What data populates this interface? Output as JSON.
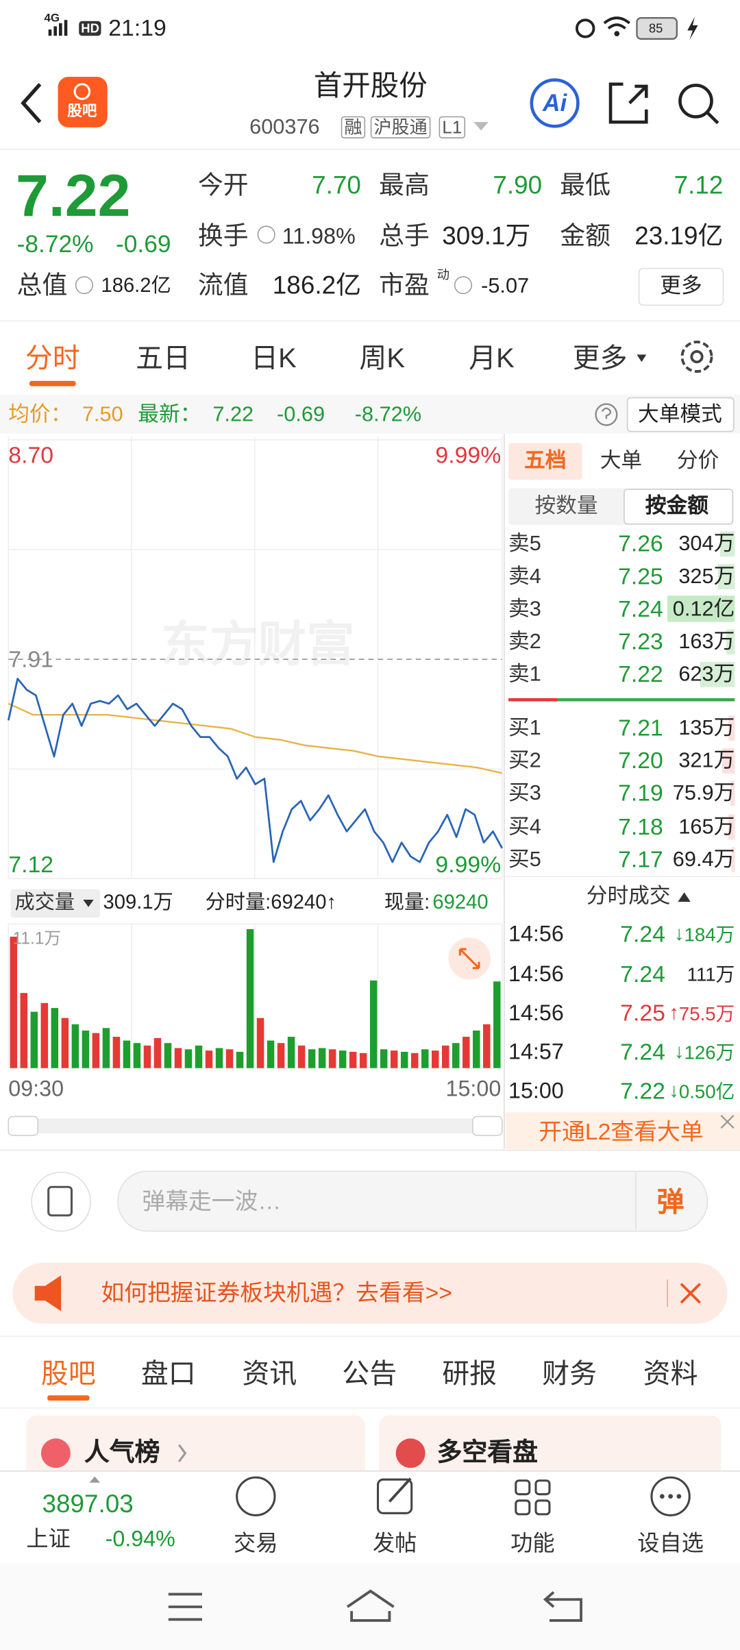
{
  "status_bar": {
    "network": "4G",
    "hd": "HD",
    "time": "21:19",
    "battery": "85"
  },
  "header": {
    "logo": "股吧",
    "title": "首开股份",
    "code": "600376",
    "tags": [
      "融",
      "沪股通",
      "L1"
    ],
    "ai": "Ai"
  },
  "quote": {
    "price": "7.22",
    "change_pct": "-8.72%",
    "change": "-0.69",
    "open_label": "今开",
    "open": "7.70",
    "high_label": "最高",
    "high": "7.90",
    "low_label": "最低",
    "low": "7.12",
    "turnover_label": "换手",
    "turnover": "11.98%",
    "volume_label": "总手",
    "volume": "309.1万",
    "amount_label": "金额",
    "amount": "23.19亿",
    "mcap_label": "总值",
    "mcap": "186.2亿",
    "float_label": "流值",
    "float": "186.2亿",
    "pe_label": "市盈",
    "pe_sup": "动",
    "pe": "-5.07",
    "more": "更多"
  },
  "chart_tabs": [
    "分时",
    "五日",
    "日K",
    "周K",
    "月K",
    "更多"
  ],
  "summary": {
    "avg_label": "均价：",
    "avg": "7.50",
    "latest_label": "最新：",
    "latest": "7.22",
    "change": "-0.69",
    "change_pct": "-8.72%",
    "mode": "大单模式"
  },
  "intraday_chart": {
    "type": "line",
    "ylim": [
      7.12,
      8.7
    ],
    "ref_price": 7.91,
    "price_color": "#2a65b5",
    "avg_color": "#e8b54a",
    "price": [
      7.69,
      7.84,
      7.8,
      7.78,
      7.67,
      7.56,
      7.71,
      7.75,
      7.67,
      7.75,
      7.76,
      7.75,
      7.78,
      7.73,
      7.75,
      7.71,
      7.67,
      7.71,
      7.75,
      7.73,
      7.67,
      7.63,
      7.63,
      7.59,
      7.56,
      7.48,
      7.52,
      7.46,
      7.48,
      7.18,
      7.29,
      7.37,
      7.4,
      7.33,
      7.37,
      7.42,
      7.35,
      7.29,
      7.33,
      7.37,
      7.29,
      7.25,
      7.18,
      7.25,
      7.2,
      7.18,
      7.25,
      7.29,
      7.35,
      7.27,
      7.37,
      7.35,
      7.25,
      7.29,
      7.23
    ],
    "avg": [
      7.75,
      7.71,
      7.71,
      7.71,
      7.71,
      7.7,
      7.69,
      7.68,
      7.67,
      7.66,
      7.63,
      7.62,
      7.6,
      7.59,
      7.58,
      7.56,
      7.55,
      7.54,
      7.53,
      7.52,
      7.5
    ],
    "top_label": "8.70",
    "top_pct": "9.99%",
    "ref_label": "7.91",
    "bottom_label": "7.12",
    "bottom_pct": "9.99%",
    "watermark": "东方财富",
    "volume_label": "成交量",
    "total_volume": "309.1万",
    "minute_volume": "分时量:69240↑",
    "now_label": "现量:",
    "now_volume": "69240",
    "volume_max_label": "11.1万",
    "volume_ylim": [
      0,
      111000
    ],
    "up_color": "#e53935",
    "down_color": "#1e9e2e",
    "volumes": [
      105000,
      60000,
      45000,
      52000,
      48000,
      40000,
      35000,
      30000,
      28000,
      32000,
      25000,
      22000,
      20000,
      18000,
      24000,
      20000,
      16000,
      15000,
      18000,
      14000,
      16000,
      15000,
      13000,
      111000,
      40000,
      22000,
      20000,
      25000,
      18000,
      15000,
      16000,
      15000,
      14000,
      13000,
      12000,
      70000,
      15000,
      14000,
      13000,
      12000,
      15000,
      14000,
      18000,
      20000,
      25000,
      30000,
      35000,
      69240
    ],
    "volume_up": [
      true,
      true,
      false,
      true,
      false,
      true,
      false,
      false,
      true,
      false,
      true,
      false,
      false,
      true,
      true,
      false,
      true,
      false,
      false,
      true,
      false,
      true,
      false,
      false,
      true,
      false,
      true,
      false,
      true,
      false,
      false,
      true,
      false,
      true,
      true,
      false,
      false,
      true,
      false,
      true,
      false,
      true,
      true,
      false,
      true,
      false,
      true,
      false
    ],
    "time_start": "09:30",
    "time_end": "15:00"
  },
  "order_book": {
    "tabs": [
      "五档",
      "大单",
      "分价"
    ],
    "sort": [
      "按数量",
      "按金额"
    ],
    "asks": [
      {
        "label": "卖5",
        "price": "7.26",
        "volume": "304万"
      },
      {
        "label": "卖4",
        "price": "7.25",
        "volume": "325万"
      },
      {
        "label": "卖3",
        "price": "7.24",
        "volume": "0.12亿"
      },
      {
        "label": "卖2",
        "price": "7.23",
        "volume": "163万"
      },
      {
        "label": "卖1",
        "price": "7.22",
        "volume": "623万"
      }
    ],
    "bids": [
      {
        "label": "买1",
        "price": "7.21",
        "volume": "135万"
      },
      {
        "label": "买2",
        "price": "7.20",
        "volume": "321万"
      },
      {
        "label": "买3",
        "price": "7.19",
        "volume": "75.9万"
      },
      {
        "label": "买4",
        "price": "7.18",
        "volume": "165万"
      },
      {
        "label": "买5",
        "price": "7.17",
        "volume": "69.4万"
      }
    ]
  },
  "trades": {
    "title": "分时成交",
    "rows": [
      {
        "time": "14:56",
        "price": "7.24",
        "arrow": "↓",
        "volume": "184万"
      },
      {
        "time": "14:56",
        "price": "7.24",
        "volume": "111万"
      },
      {
        "time": "14:56",
        "price": "7.25",
        "arrow": "↑",
        "volume": "75.5万"
      },
      {
        "time": "14:57",
        "price": "7.24",
        "arrow": "↓",
        "volume": "126万"
      },
      {
        "time": "15:00",
        "price": "7.22",
        "arrow": "↓",
        "volume": "0.50亿"
      }
    ],
    "promo": "开通L2查看大单"
  },
  "comment": {
    "placeholder": "弹幕走一波…",
    "button": "弹"
  },
  "banner": "如何把握证券板块机遇？去看看>>",
  "section_tabs": [
    "股吧",
    "盘口",
    "资讯",
    "公告",
    "研报",
    "财务",
    "资料"
  ],
  "cards": [
    "人气榜",
    "多空看盘"
  ],
  "bottom_bar": {
    "index_value": "3897.03",
    "index_name": "上证",
    "index_change": "-0.94%",
    "actions": [
      "交易",
      "发帖",
      "功能",
      "设自选"
    ]
  }
}
